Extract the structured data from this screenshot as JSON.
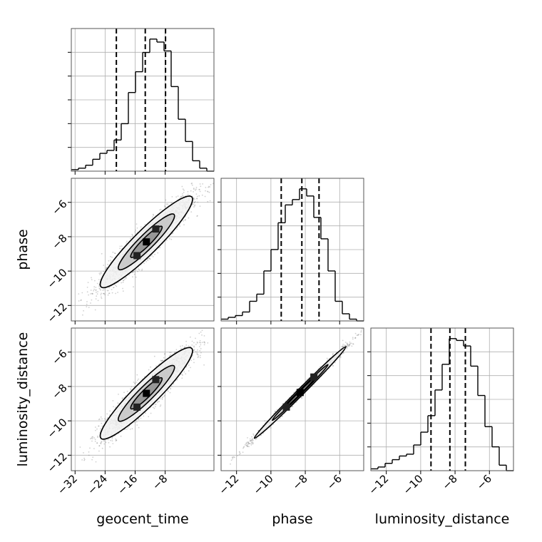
{
  "chart_data": {
    "type": "corner",
    "parameters": [
      "geocent_time",
      "phase",
      "luminosity_distance"
    ],
    "grid": true,
    "ranges": {
      "geocent_time": [
        -33,
        5
      ],
      "phase": [
        -12.9,
        -4.6
      ],
      "luminosity_distance": [
        -12.9,
        -4.6
      ]
    },
    "ticks": {
      "geocent_time": [
        -32,
        -24,
        -16,
        -8
      ],
      "phase": [
        -12,
        -10,
        -8,
        -6
      ],
      "luminosity_distance": [
        -12,
        -10,
        -8,
        -6
      ]
    },
    "histograms": [
      {
        "parameter": "geocent_time",
        "bin_edges": [
          -33,
          -31.1,
          -29.2,
          -27.3,
          -25.4,
          -23.5,
          -21.6,
          -19.7,
          -17.8,
          -15.9,
          -14,
          -12.1,
          -10.2,
          -8.3,
          -6.4,
          -4.5,
          -2.6,
          -0.7,
          1.2,
          3.1,
          5
        ],
        "counts": [
          1,
          2,
          4,
          8,
          12,
          14,
          21,
          32,
          53,
          67,
          80,
          89,
          87,
          81,
          57,
          35,
          20,
          7,
          2,
          0
        ],
        "quantiles": [
          -21,
          -13.3,
          -7.9
        ]
      },
      {
        "parameter": "phase",
        "bin_edges": [
          -12.9,
          -12.485,
          -12.07,
          -11.655,
          -11.24,
          -10.825,
          -10.41,
          -9.995,
          -9.58,
          -9.165,
          -8.75,
          -8.335,
          -7.92,
          -7.505,
          -7.09,
          -6.675,
          -6.26,
          -5.845,
          -5.43,
          -5.015,
          -4.6
        ],
        "counts": [
          1,
          2,
          3,
          5,
          11,
          15,
          28,
          40,
          55,
          65,
          68,
          74,
          70,
          58,
          46,
          28,
          11,
          4,
          1,
          0
        ],
        "quantiles": [
          -9.4,
          -8.2,
          -7.2
        ]
      },
      {
        "parameter": "luminosity_distance",
        "bin_edges": [
          -12.9,
          -12.485,
          -12.07,
          -11.655,
          -11.24,
          -10.825,
          -10.41,
          -9.995,
          -9.58,
          -9.165,
          -8.75,
          -8.335,
          -7.92,
          -7.505,
          -7.09,
          -6.675,
          -6.26,
          -5.845,
          -5.43,
          -5.015,
          -4.6
        ],
        "counts": [
          1,
          2,
          4,
          6,
          8,
          9,
          14,
          21,
          30,
          44,
          58,
          72,
          71,
          68,
          57,
          41,
          24,
          13,
          3,
          0
        ],
        "quantiles": [
          -9.4,
          -8.3,
          -7.4
        ]
      }
    ],
    "scatter_panels": [
      {
        "x": "geocent_time",
        "y": "phase",
        "mean": [
          -13,
          -8.3
        ],
        "sd": [
          6,
          1.3
        ],
        "rho": 0.93,
        "contour_scale": [
          0.7,
          1.25,
          2.05
        ],
        "dense_cells": [
          [
            -13,
            -8.3
          ],
          [
            -10.5,
            -7.55
          ],
          [
            -15.5,
            -9.1
          ]
        ]
      },
      {
        "x": "geocent_time",
        "y": "luminosity_distance",
        "mean": [
          -13,
          -8.4
        ],
        "sd": [
          6,
          1.3
        ],
        "rho": 0.93,
        "contour_scale": [
          0.7,
          1.25,
          2.05
        ],
        "dense_cells": [
          [
            -13,
            -8.4
          ],
          [
            -10.5,
            -7.6
          ],
          [
            -15.5,
            -9.2
          ]
        ]
      },
      {
        "x": "phase",
        "y": "luminosity_distance",
        "mean": [
          -8.3,
          -8.35
        ],
        "sd": [
          1.3,
          1.3
        ],
        "rho": 0.995,
        "contour_scale": [
          0.7,
          1.25,
          2.05
        ],
        "dense_cells": [
          [
            -8.3,
            -8.35
          ],
          [
            -7.5,
            -7.45
          ],
          [
            -9.1,
            -9.2
          ]
        ]
      }
    ]
  }
}
